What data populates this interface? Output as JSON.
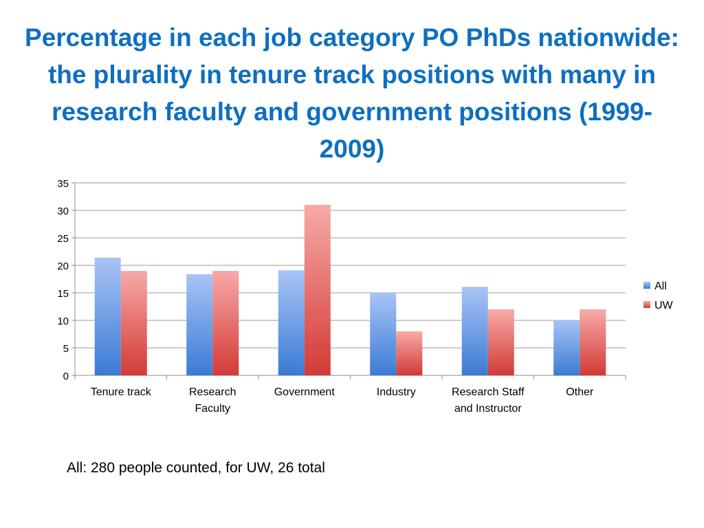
{
  "slide": {
    "title": "Percentage in each job category PO PhDs nationwide: the plurality in tenure track positions with many in research faculty and government positions (1999-2009)",
    "footnote": "All:  280 people counted, for UW, 26 total"
  },
  "chart_data": {
    "type": "bar",
    "title": "",
    "xlabel": "",
    "ylabel": "",
    "categories": [
      [
        "Tenure track"
      ],
      [
        "Research",
        "Faculty"
      ],
      [
        "Government"
      ],
      [
        "Industry"
      ],
      [
        "Research Staff",
        "and Instructor"
      ],
      [
        "Other"
      ]
    ],
    "series": [
      {
        "name": "All",
        "values": [
          21.4,
          18.4,
          19.1,
          15,
          16.1,
          10.1
        ],
        "color_top": "#a9c4f5",
        "color_bottom": "#3a7bd5"
      },
      {
        "name": "UW",
        "values": [
          19,
          19,
          31,
          8,
          12,
          12
        ],
        "color_top": "#f7aaa8",
        "color_bottom": "#d23a36"
      }
    ],
    "ylim": [
      0,
      35
    ],
    "yticks": [
      0,
      5,
      10,
      15,
      20,
      25,
      30,
      35
    ],
    "grid": true,
    "legend": "right"
  }
}
